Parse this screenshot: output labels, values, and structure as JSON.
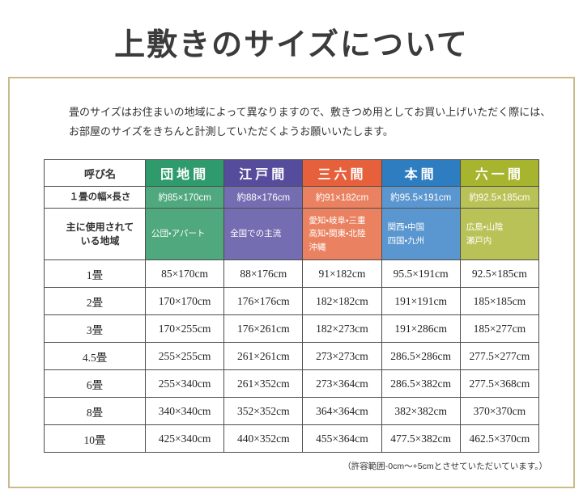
{
  "page": {
    "title": "上敷きのサイズについて",
    "intro": "畳のサイズはお住まいの地域によって異なりますので、敷きつめ用としてお買い上げいただく際には、\nお部屋のサイズをきちんと計測していただくようお願いいたします。",
    "footnote": "（許容範囲-0cm～+5cmとさせていただいています。）"
  },
  "table": {
    "name_header": "呼び名",
    "width_row_label": "１畳の幅×長さ",
    "region_row_label": "主に使用されて\nいる地域",
    "columns": [
      {
        "name": "団地間",
        "color": "#2f9b6c",
        "light_color": "#4fa87e",
        "width_length": "約85×170cm",
        "region": "公団・アパート"
      },
      {
        "name": "江戸間",
        "color": "#564c9c",
        "light_color": "#746db1",
        "width_length": "約88×176cm",
        "region": "全国での主流"
      },
      {
        "name": "三六間",
        "color": "#e6603c",
        "light_color": "#ea8160",
        "width_length": "約91×182cm",
        "region": "愛知・岐阜・三重\n高知・関東・北陸\n沖縄"
      },
      {
        "name": "本間",
        "color": "#2e7dc1",
        "light_color": "#5a96cf",
        "width_length": "約95.5×191cm",
        "region": "関西・中国\n四国・九州"
      },
      {
        "name": "六一間",
        "color": "#a6b42e",
        "light_color": "#b9c256",
        "width_length": "約92.5×185cm",
        "region": "広島・山陰\n瀬戸内"
      }
    ],
    "size_rows": [
      {
        "label": "1畳",
        "values": [
          "85×170cm",
          "88×176cm",
          "91×182cm",
          "95.5×191cm",
          "92.5×185cm"
        ]
      },
      {
        "label": "2畳",
        "values": [
          "170×170cm",
          "176×176cm",
          "182×182cm",
          "191×191cm",
          "185×185cm"
        ]
      },
      {
        "label": "3畳",
        "values": [
          "170×255cm",
          "176×261cm",
          "182×273cm",
          "191×286cm",
          "185×277cm"
        ]
      },
      {
        "label": "4.5畳",
        "values": [
          "255×255cm",
          "261×261cm",
          "273×273cm",
          "286.5×286cm",
          "277.5×277cm"
        ]
      },
      {
        "label": "6畳",
        "values": [
          "255×340cm",
          "261×352cm",
          "273×364cm",
          "286.5×382cm",
          "277.5×368cm"
        ]
      },
      {
        "label": "8畳",
        "values": [
          "340×340cm",
          "352×352cm",
          "364×364cm",
          "382×382cm",
          "370×370cm"
        ]
      },
      {
        "label": "10畳",
        "values": [
          "425×340cm",
          "440×352cm",
          "455×364cm",
          "477.5×382cm",
          "462.5×370cm"
        ]
      }
    ]
  }
}
